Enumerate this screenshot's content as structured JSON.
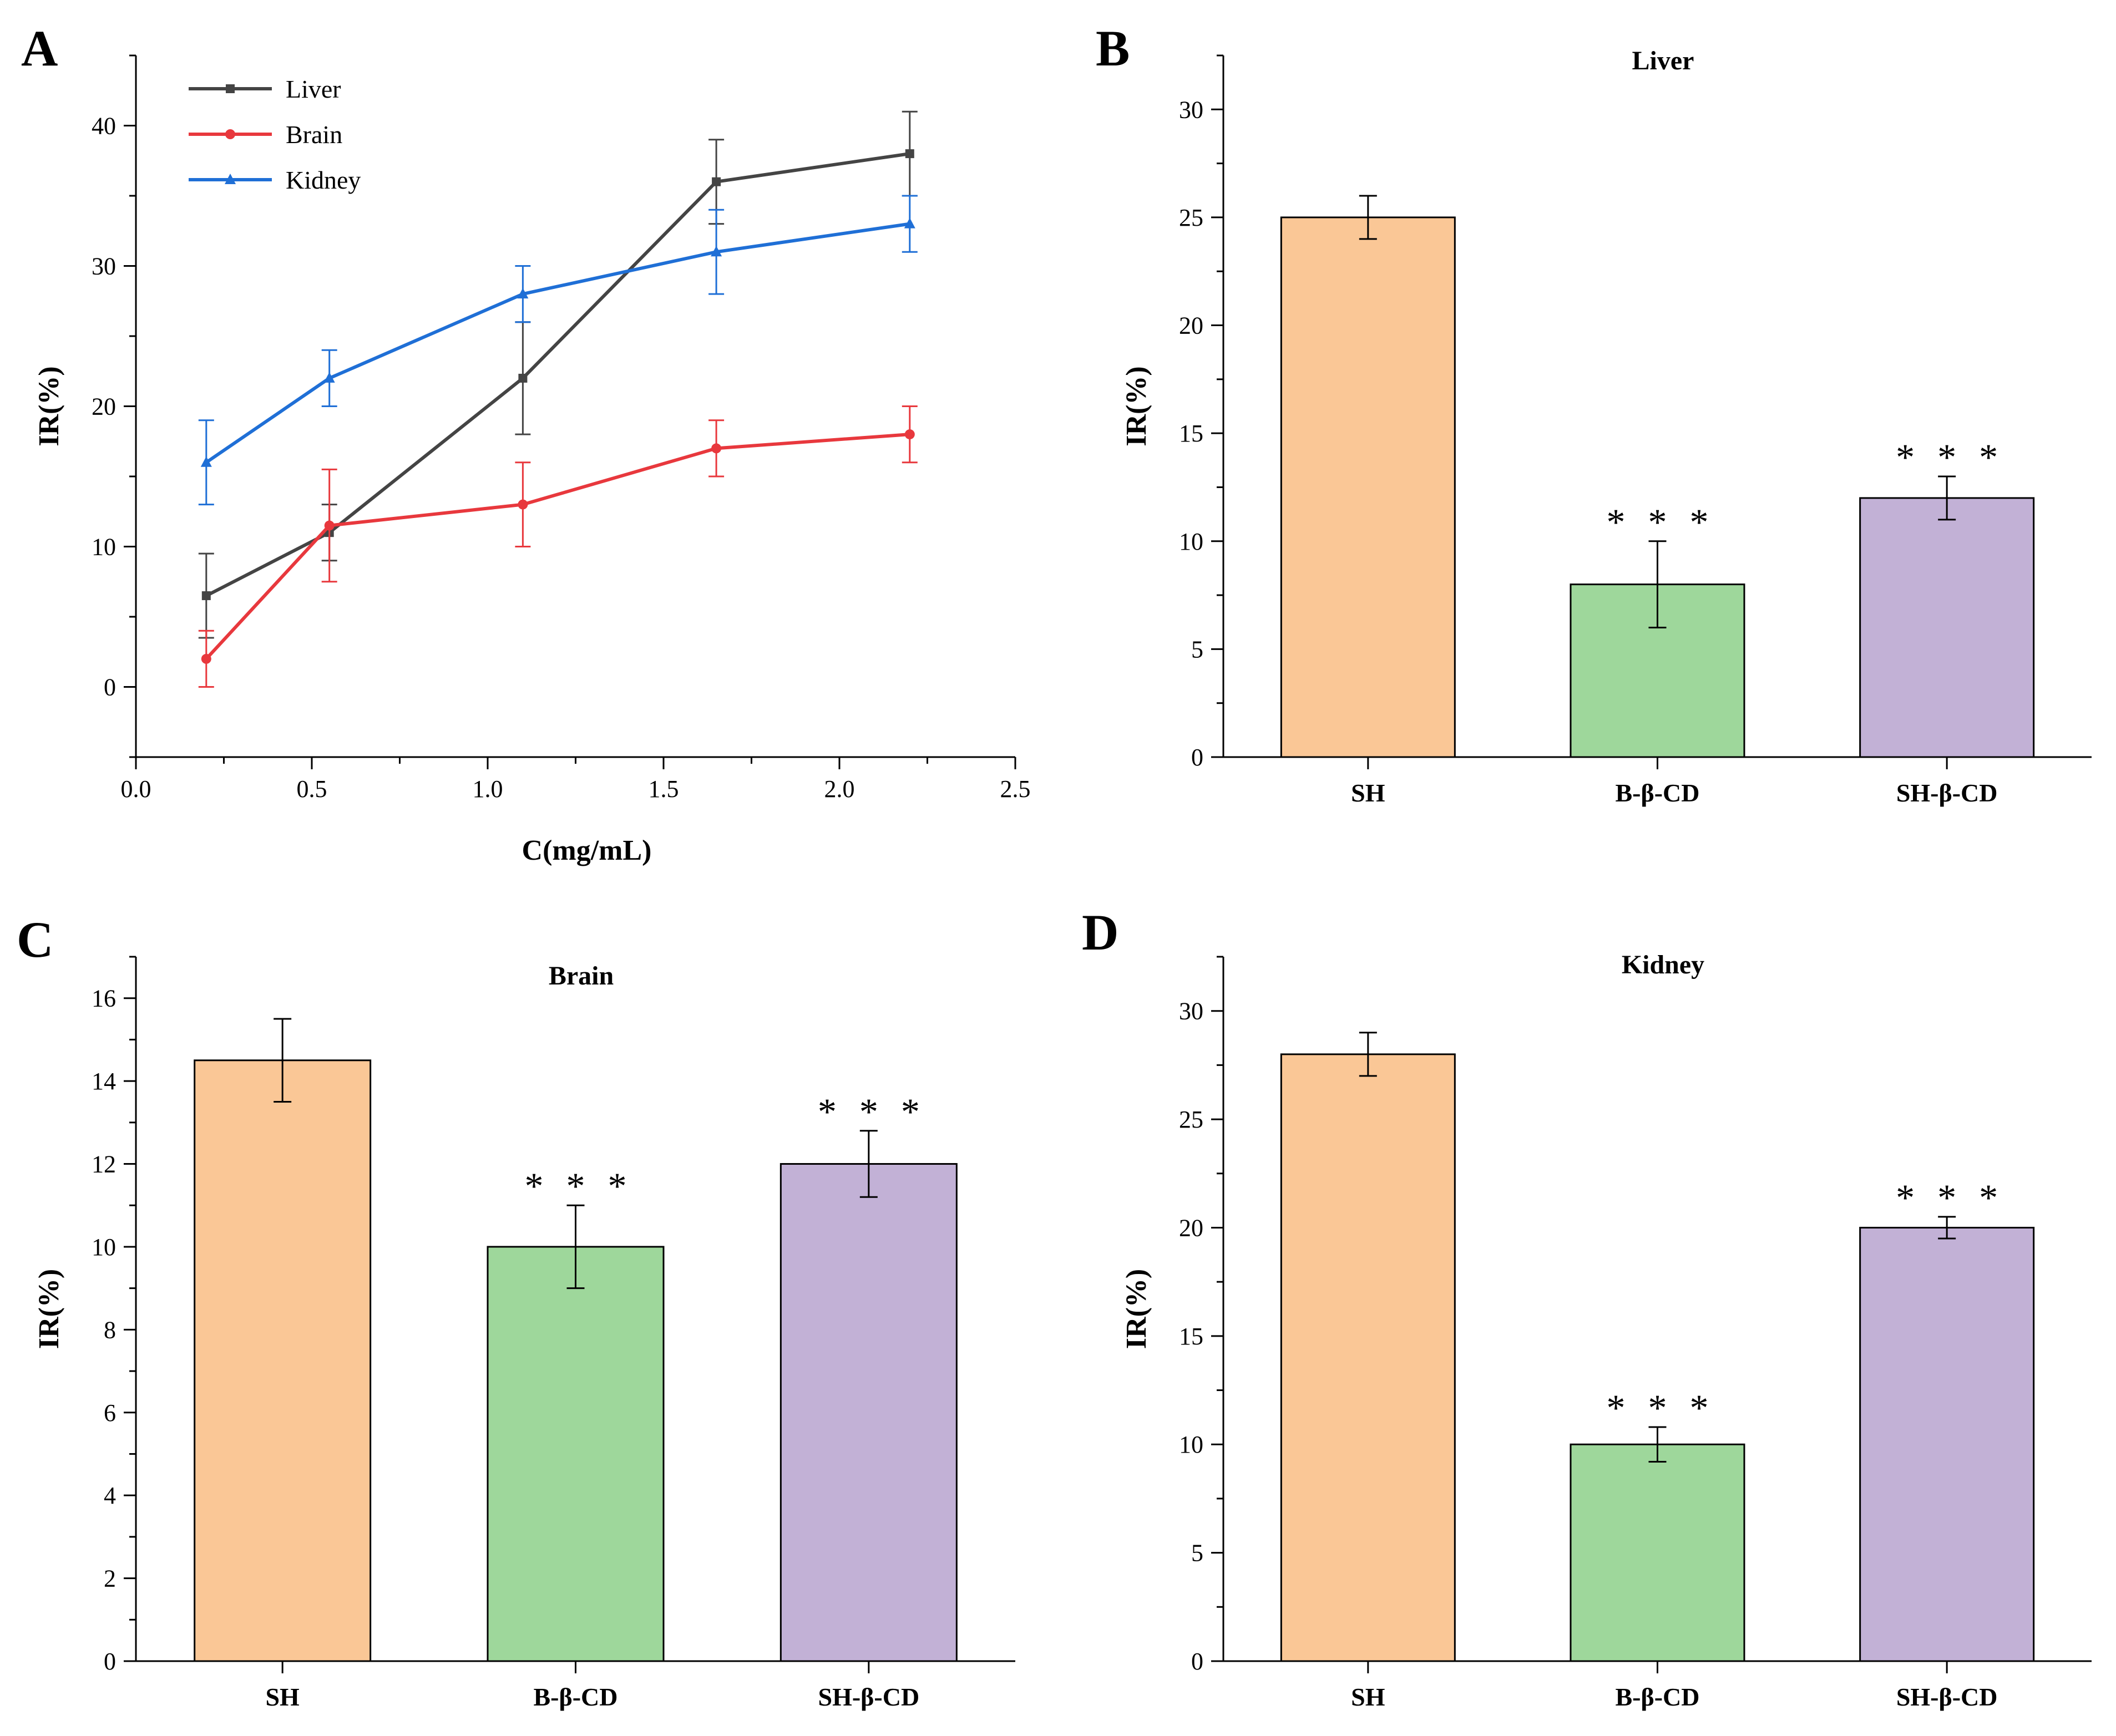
{
  "chart_data": [
    {
      "panel": "A",
      "type": "line",
      "title": "",
      "xlabel": "C(mg/mL)",
      "ylabel": "IR(%)",
      "xlim": [
        0,
        2.5
      ],
      "ylim": [
        -5,
        45
      ],
      "xticks": [
        0.0,
        0.5,
        1.0,
        1.5,
        2.0,
        2.5
      ],
      "xtick_labels": [
        "0.0",
        "0.5",
        "1.0",
        "1.5",
        "2.0",
        "2.5"
      ],
      "yticks": [
        0,
        10,
        20,
        30,
        40
      ],
      "ytick_labels": [
        "0",
        "10",
        "20",
        "30",
        "40"
      ],
      "legend": "top-left",
      "x": [
        0.2,
        0.55,
        1.1,
        1.65,
        2.2
      ],
      "series": [
        {
          "name": "Liver",
          "color": "#444444",
          "marker": "square",
          "values": [
            6.5,
            11,
            22,
            36,
            38
          ],
          "errors": [
            3,
            2,
            4,
            3,
            3
          ]
        },
        {
          "name": "Brain",
          "color": "#e8383d",
          "marker": "circle",
          "values": [
            2,
            11.5,
            13,
            17,
            18
          ],
          "errors": [
            2,
            4,
            3,
            2,
            2
          ]
        },
        {
          "name": "Kidney",
          "color": "#1f6fd6",
          "marker": "triangle",
          "values": [
            16,
            22,
            28,
            31,
            33
          ],
          "errors": [
            3,
            2,
            2,
            3,
            2
          ]
        }
      ]
    },
    {
      "panel": "B",
      "type": "bar",
      "title": "Liver",
      "xlabel": "",
      "ylabel": "IR(%)",
      "ylim": [
        0,
        32.5
      ],
      "yticks": [
        0,
        5,
        10,
        15,
        20,
        25,
        30
      ],
      "ytick_labels": [
        "0",
        "5",
        "10",
        "15",
        "20",
        "25",
        "30"
      ],
      "categories": [
        "SH",
        "B-β-CD",
        "SH-β-CD"
      ],
      "values": [
        25,
        8,
        12
      ],
      "errors": [
        1,
        2,
        1
      ],
      "significance": [
        "",
        "* * *",
        "* * *"
      ],
      "colors": [
        "#fac796",
        "#9ed79b",
        "#c2b1d6"
      ]
    },
    {
      "panel": "C",
      "type": "bar",
      "title": "Brain",
      "xlabel": "",
      "ylabel": "IR(%)",
      "ylim": [
        0,
        17
      ],
      "yticks": [
        0,
        2,
        4,
        6,
        8,
        10,
        12,
        14,
        16
      ],
      "ytick_labels": [
        "0",
        "2",
        "4",
        "6",
        "8",
        "10",
        "12",
        "14",
        "16"
      ],
      "categories": [
        "SH",
        "B-β-CD",
        "SH-β-CD"
      ],
      "values": [
        14.5,
        10,
        12
      ],
      "errors": [
        1,
        1,
        0.8
      ],
      "significance": [
        "",
        "* * *",
        "* * *"
      ],
      "colors": [
        "#fac796",
        "#9ed79b",
        "#c2b1d6"
      ]
    },
    {
      "panel": "D",
      "type": "bar",
      "title": "Kidney",
      "xlabel": "",
      "ylabel": "IR(%)",
      "ylim": [
        0,
        32.5
      ],
      "yticks": [
        0,
        5,
        10,
        15,
        20,
        25,
        30
      ],
      "ytick_labels": [
        "0",
        "5",
        "10",
        "15",
        "20",
        "25",
        "30"
      ],
      "categories": [
        "SH",
        "B-β-CD",
        "SH-β-CD"
      ],
      "values": [
        28,
        10,
        20
      ],
      "errors": [
        1,
        0.8,
        0.5
      ],
      "significance": [
        "",
        "* * *",
        "* * *"
      ],
      "colors": [
        "#fac796",
        "#9ed79b",
        "#c2b1d6"
      ]
    }
  ]
}
